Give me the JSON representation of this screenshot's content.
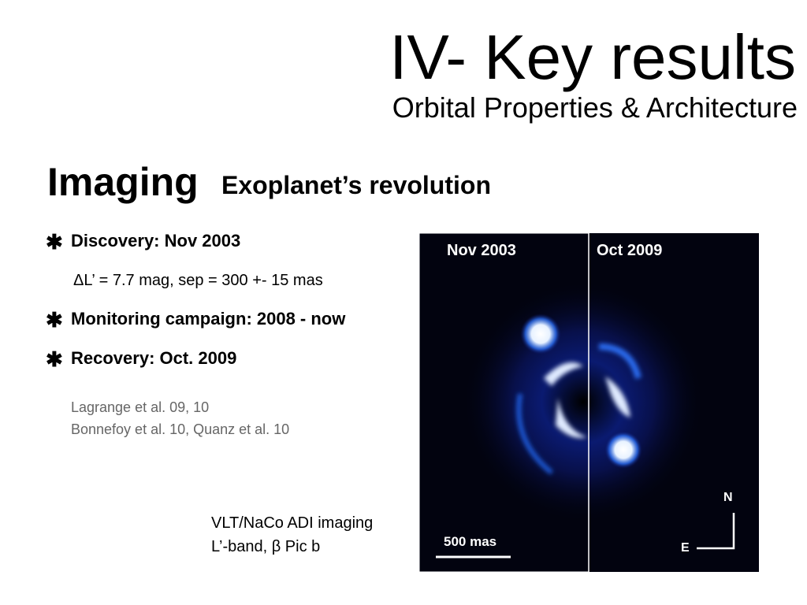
{
  "header": {
    "title": "IV- Key results",
    "subtitle": "Orbital Properties & Architecture"
  },
  "section": {
    "heading": "Imaging",
    "subheading": "Exoplanet’s revolution"
  },
  "bullets": [
    "Discovery: Nov 2003",
    "Monitoring campaign: 2008 - now",
    "Recovery: Oct. 2009"
  ],
  "detail": "ΔL’ = 7.7 mag, sep = 300 +- 15 mas",
  "references": [
    "Lagrange et al. 09, 10",
    "Bonnefoy et al. 10, Quanz et al. 10"
  ],
  "caption": [
    "VLT/NaCo ADI imaging",
    "L’-band, β Pic b"
  ],
  "image": {
    "panels": [
      "Nov 2003",
      "Oct 2009"
    ],
    "scale": "500 mas",
    "north": "N",
    "east": "E"
  }
}
